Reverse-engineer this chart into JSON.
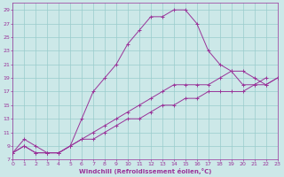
{
  "title": "",
  "xlabel": "Windchill (Refroidissement éolien,°C)",
  "bg_color": "#cce8e8",
  "grid_color": "#99cccc",
  "line_color": "#993399",
  "xlim": [
    0,
    23
  ],
  "ylim": [
    7,
    30
  ],
  "yticks": [
    7,
    9,
    11,
    13,
    15,
    17,
    19,
    21,
    23,
    25,
    27,
    29
  ],
  "xticks": [
    0,
    1,
    2,
    3,
    4,
    5,
    6,
    7,
    8,
    9,
    10,
    11,
    12,
    13,
    14,
    15,
    16,
    17,
    18,
    19,
    20,
    21,
    22,
    23
  ],
  "series": [
    {
      "x": [
        0,
        1,
        2,
        3,
        4,
        5,
        6,
        7,
        8,
        9,
        10,
        11,
        12,
        13,
        14,
        15,
        16,
        17,
        18,
        19,
        20,
        21,
        22
      ],
      "y": [
        8,
        10,
        9,
        8,
        8,
        9,
        13,
        17,
        19,
        21,
        24,
        26,
        28,
        28,
        29,
        29,
        27,
        23,
        21,
        20,
        18,
        18,
        19
      ]
    },
    {
      "x": [
        0,
        1,
        2,
        3,
        4,
        5,
        6,
        7,
        8,
        9,
        10,
        11,
        12,
        13,
        14,
        15,
        16,
        17,
        18,
        19,
        20,
        21,
        22,
        23
      ],
      "y": [
        8,
        9,
        8,
        8,
        8,
        9,
        10,
        11,
        12,
        13,
        14,
        15,
        16,
        17,
        18,
        18,
        18,
        18,
        19,
        20,
        20,
        19,
        18,
        19
      ]
    },
    {
      "x": [
        0,
        1,
        2,
        3,
        4,
        5,
        6,
        7,
        8,
        9,
        10,
        11,
        12,
        13,
        14,
        15,
        16,
        17,
        18,
        19,
        20,
        21,
        22,
        23
      ],
      "y": [
        8,
        9,
        8,
        8,
        8,
        9,
        10,
        10,
        11,
        12,
        13,
        13,
        14,
        15,
        15,
        16,
        16,
        17,
        17,
        17,
        17,
        18,
        18,
        19
      ]
    }
  ]
}
